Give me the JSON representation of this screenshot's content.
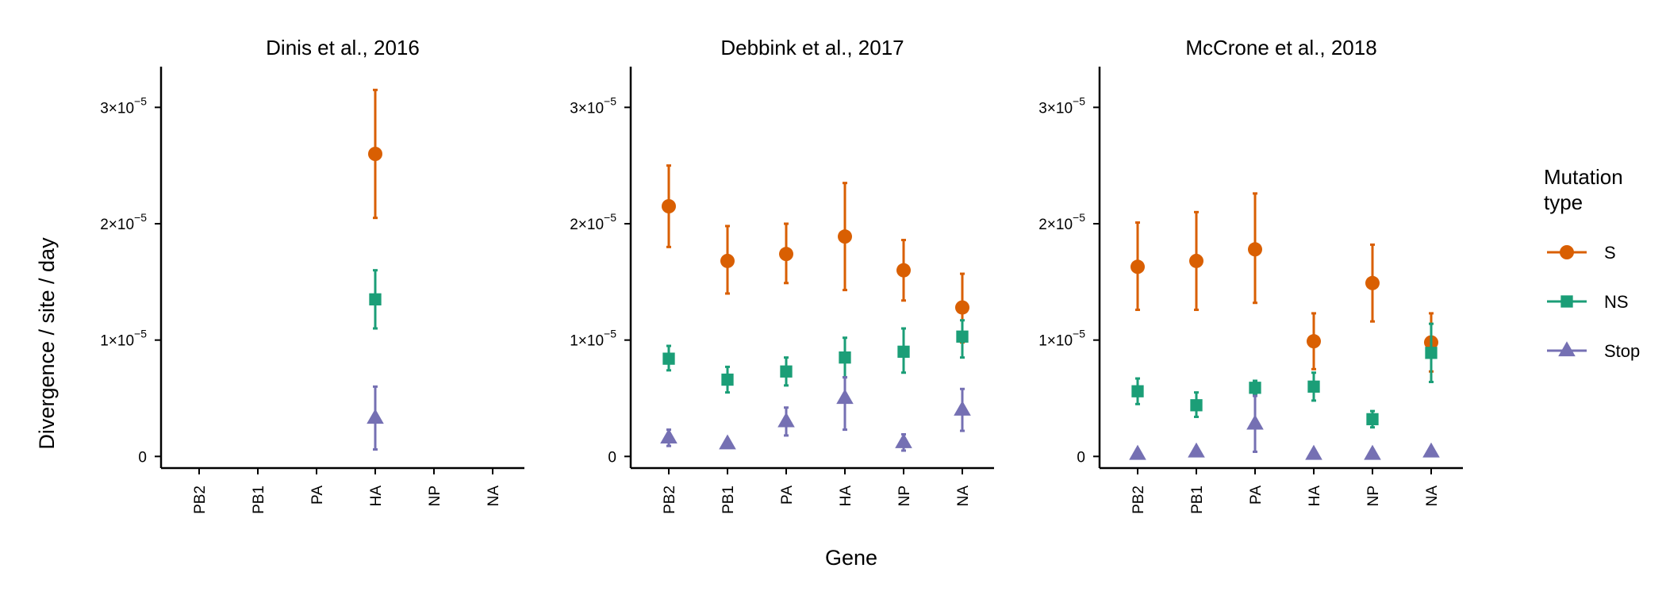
{
  "figure": {
    "y_axis_label": "Divergence / site / day",
    "x_axis_label": "Gene",
    "legend": {
      "title_line1": "Mutation",
      "title_line2": "type",
      "entries": [
        {
          "label": "S",
          "color": "#d95f02",
          "shape": "circle"
        },
        {
          "label": "NS",
          "color": "#1b9e77",
          "shape": "square"
        },
        {
          "label": "Stop",
          "color": "#7570b3",
          "shape": "triangle"
        }
      ]
    }
  },
  "chart_data": [
    {
      "type": "scatter",
      "title": "Dinis et al., 2016",
      "categories": [
        "PB2",
        "PB1",
        "PA",
        "HA",
        "NP",
        "NA"
      ],
      "xlabel": "Gene",
      "ylabel": "Divergence / site / day",
      "ylim": [
        -1e-06,
        3.35e-05
      ],
      "yticks": [
        {
          "value": 0,
          "base": "0",
          "exp": ""
        },
        {
          "value": 1e-05,
          "base": "1×10",
          "exp": "−5"
        },
        {
          "value": 2e-05,
          "base": "2×10",
          "exp": "−5"
        },
        {
          "value": 3e-05,
          "base": "3×10",
          "exp": "−5"
        }
      ],
      "series": [
        {
          "name": "S",
          "values": [
            null,
            null,
            null,
            2.6e-05,
            null,
            null
          ],
          "lower": [
            null,
            null,
            null,
            2.05e-05,
            null,
            null
          ],
          "upper": [
            null,
            null,
            null,
            3.15e-05,
            null,
            null
          ]
        },
        {
          "name": "NS",
          "values": [
            null,
            null,
            null,
            1.35e-05,
            null,
            null
          ],
          "lower": [
            null,
            null,
            null,
            1.1e-05,
            null,
            null
          ],
          "upper": [
            null,
            null,
            null,
            1.6e-05,
            null,
            null
          ]
        },
        {
          "name": "Stop",
          "values": [
            null,
            null,
            null,
            3.3e-06,
            null,
            null
          ],
          "lower": [
            null,
            null,
            null,
            6e-07,
            null,
            null
          ],
          "upper": [
            null,
            null,
            null,
            6e-06,
            null,
            null
          ]
        }
      ]
    },
    {
      "type": "scatter",
      "title": "Debbink et al., 2017",
      "categories": [
        "PB2",
        "PB1",
        "PA",
        "HA",
        "NP",
        "NA"
      ],
      "xlabel": "Gene",
      "ylabel": "Divergence / site / day",
      "ylim": [
        -1e-06,
        3.35e-05
      ],
      "yticks": [
        {
          "value": 0,
          "base": "0",
          "exp": ""
        },
        {
          "value": 1e-05,
          "base": "1×10",
          "exp": "−5"
        },
        {
          "value": 2e-05,
          "base": "2×10",
          "exp": "−5"
        },
        {
          "value": 3e-05,
          "base": "3×10",
          "exp": "−5"
        }
      ],
      "series": [
        {
          "name": "S",
          "values": [
            2.15e-05,
            1.68e-05,
            1.74e-05,
            1.89e-05,
            1.6e-05,
            1.28e-05
          ],
          "lower": [
            1.8e-05,
            1.4e-05,
            1.49e-05,
            1.43e-05,
            1.34e-05,
            9.8e-06
          ],
          "upper": [
            2.5e-05,
            1.98e-05,
            2e-05,
            2.35e-05,
            1.86e-05,
            1.57e-05
          ]
        },
        {
          "name": "NS",
          "values": [
            8.4e-06,
            6.6e-06,
            7.3e-06,
            8.5e-06,
            9e-06,
            1.03e-05
          ],
          "lower": [
            7.4e-06,
            5.5e-06,
            6.1e-06,
            6.8e-06,
            7.2e-06,
            8.5e-06
          ],
          "upper": [
            9.5e-06,
            7.7e-06,
            8.5e-06,
            1.02e-05,
            1.1e-05,
            1.17e-05
          ]
        },
        {
          "name": "Stop",
          "values": [
            1.6e-06,
            1.1e-06,
            3e-06,
            5e-06,
            1.2e-06,
            4e-06
          ],
          "lower": [
            9e-07,
            8e-07,
            1.8e-06,
            2.3e-06,
            5e-07,
            2.2e-06
          ],
          "upper": [
            2.3e-06,
            1.4e-06,
            4.2e-06,
            6.8e-06,
            1.9e-06,
            5.8e-06
          ]
        }
      ]
    },
    {
      "type": "scatter",
      "title": "McCrone et al., 2018",
      "categories": [
        "PB2",
        "PB1",
        "PA",
        "HA",
        "NP",
        "NA"
      ],
      "xlabel": "Gene",
      "ylabel": "Divergence / site / day",
      "ylim": [
        -1e-06,
        3.35e-05
      ],
      "yticks": [
        {
          "value": 0,
          "base": "0",
          "exp": ""
        },
        {
          "value": 1e-05,
          "base": "1×10",
          "exp": "−5"
        },
        {
          "value": 2e-05,
          "base": "2×10",
          "exp": "−5"
        },
        {
          "value": 3e-05,
          "base": "3×10",
          "exp": "−5"
        }
      ],
      "series": [
        {
          "name": "S",
          "values": [
            1.63e-05,
            1.68e-05,
            1.78e-05,
            9.9e-06,
            1.49e-05,
            9.8e-06
          ],
          "lower": [
            1.26e-05,
            1.26e-05,
            1.32e-05,
            7.5e-06,
            1.16e-05,
            7.3e-06
          ],
          "upper": [
            2.01e-05,
            2.1e-05,
            2.26e-05,
            1.23e-05,
            1.82e-05,
            1.23e-05
          ]
        },
        {
          "name": "NS",
          "values": [
            5.6e-06,
            4.4e-06,
            5.9e-06,
            6e-06,
            3.2e-06,
            8.9e-06
          ],
          "lower": [
            4.5e-06,
            3.4e-06,
            5.3e-06,
            4.8e-06,
            2.5e-06,
            6.4e-06
          ],
          "upper": [
            6.7e-06,
            5.5e-06,
            6.5e-06,
            7.2e-06,
            3.9e-06,
            1.14e-05
          ]
        },
        {
          "name": "Stop",
          "values": [
            2e-07,
            4e-07,
            2.8e-06,
            2e-07,
            2e-07,
            4e-07
          ],
          "lower": [
            1e-07,
            2e-07,
            4e-07,
            1e-07,
            1e-07,
            2e-07
          ],
          "upper": [
            3e-07,
            6e-07,
            5.2e-06,
            3e-07,
            3e-07,
            6e-07
          ]
        }
      ]
    }
  ]
}
